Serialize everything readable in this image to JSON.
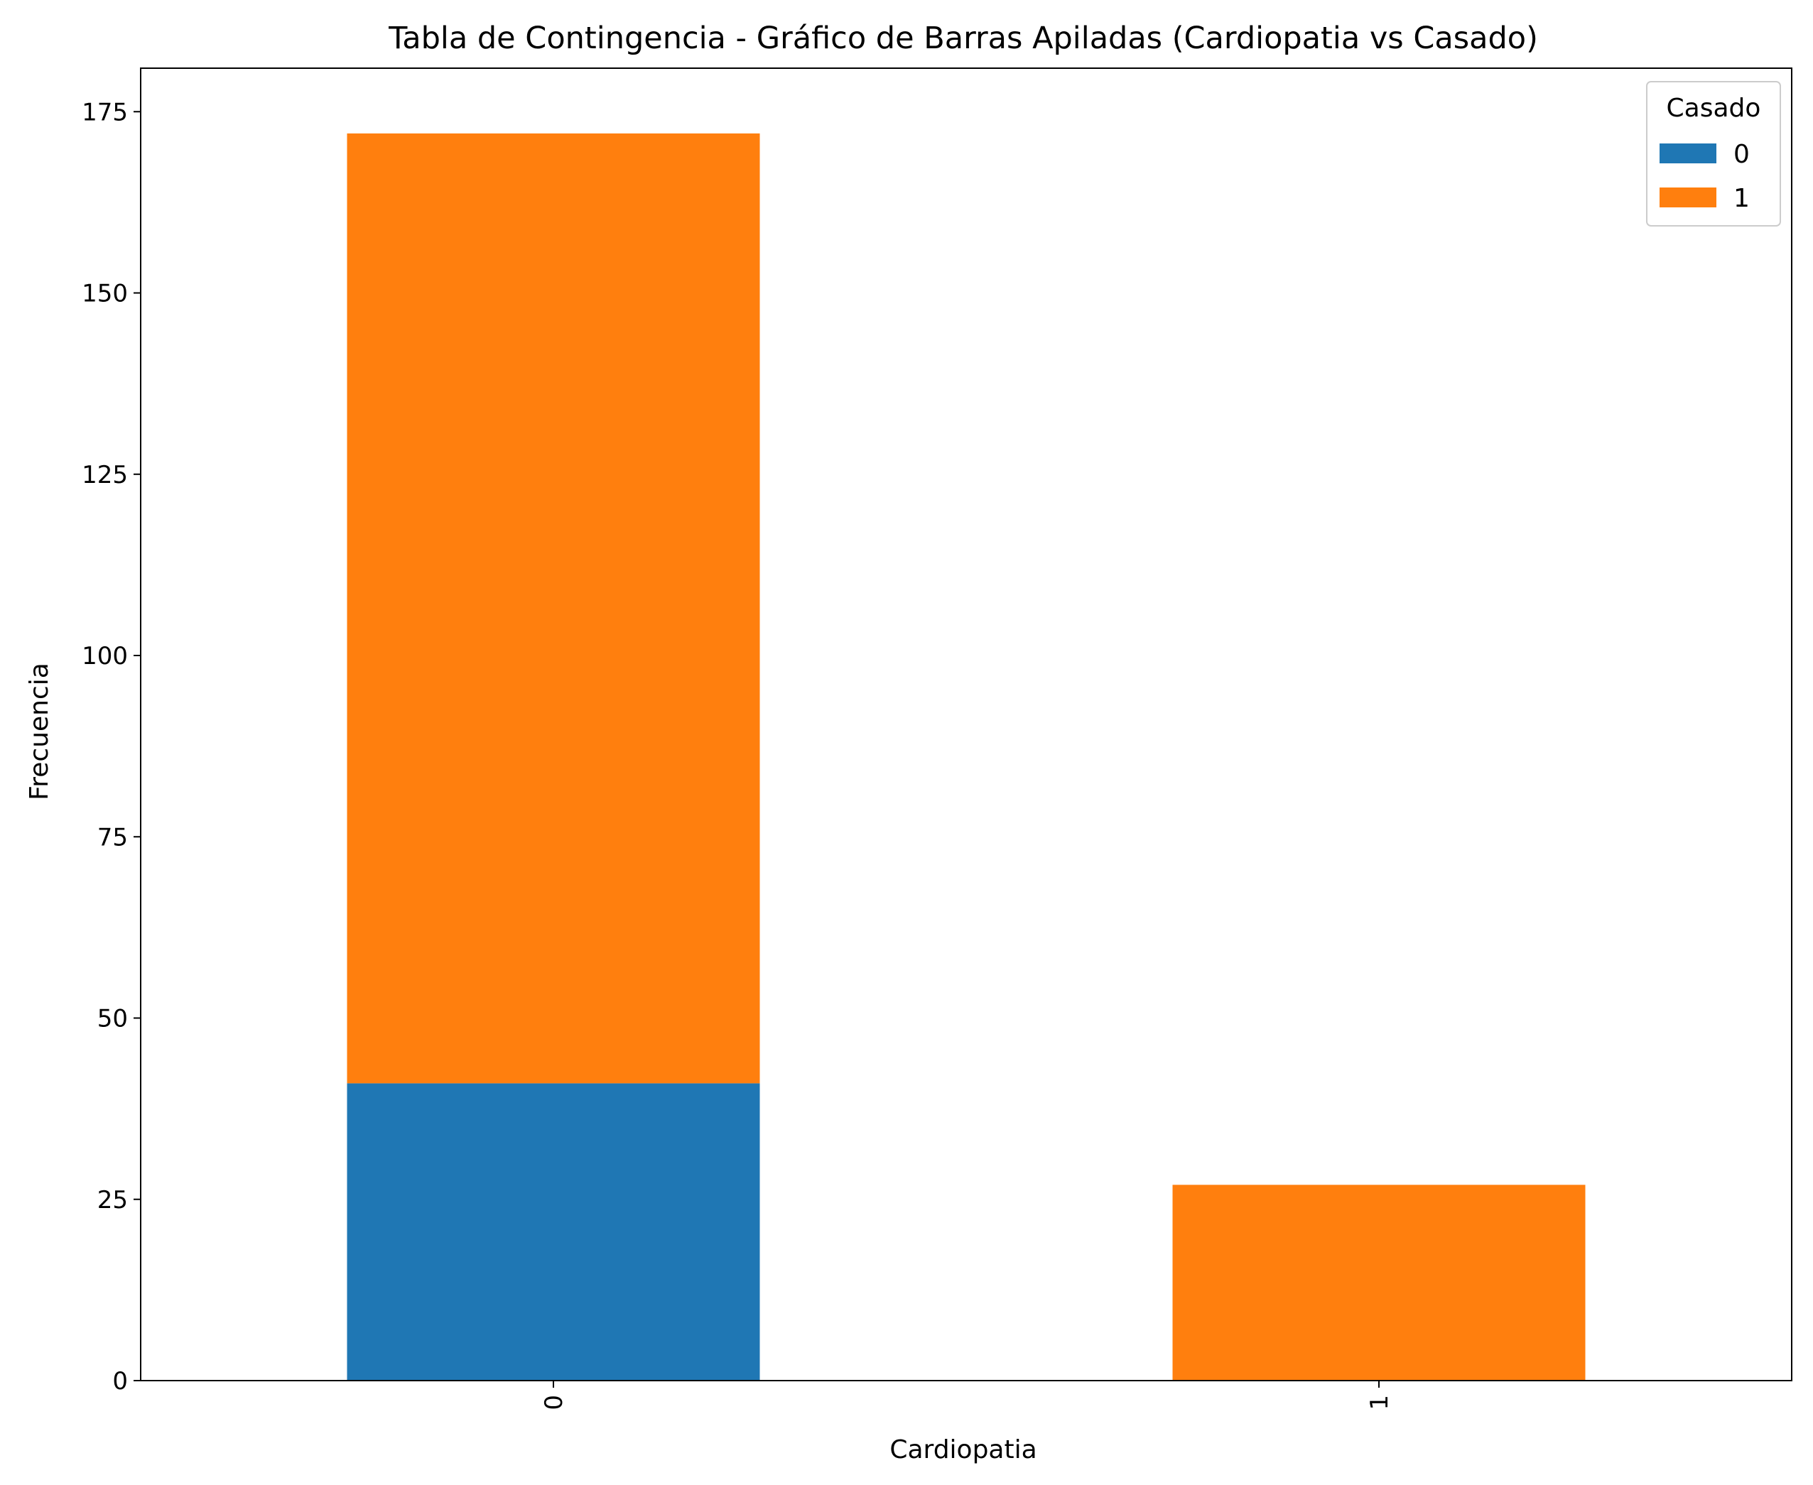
{
  "chart_data": {
    "type": "bar",
    "stacked": true,
    "title": "Tabla de Contingencia - Gráfico de Barras Apiladas (Cardiopatia vs Casado)",
    "xlabel": "Cardiopatia",
    "ylabel": "Frecuencia",
    "categories": [
      "0",
      "1"
    ],
    "series": [
      {
        "name": "0",
        "values": [
          41,
          0
        ],
        "color": "#1f77b4"
      },
      {
        "name": "1",
        "values": [
          131,
          27
        ],
        "color": "#ff7f0e"
      }
    ],
    "ylim": [
      0,
      181
    ],
    "yticks": [
      0,
      25,
      50,
      75,
      100,
      125,
      150,
      175
    ],
    "grid": false,
    "legend": {
      "title": "Casado",
      "placement": "top-right"
    }
  }
}
